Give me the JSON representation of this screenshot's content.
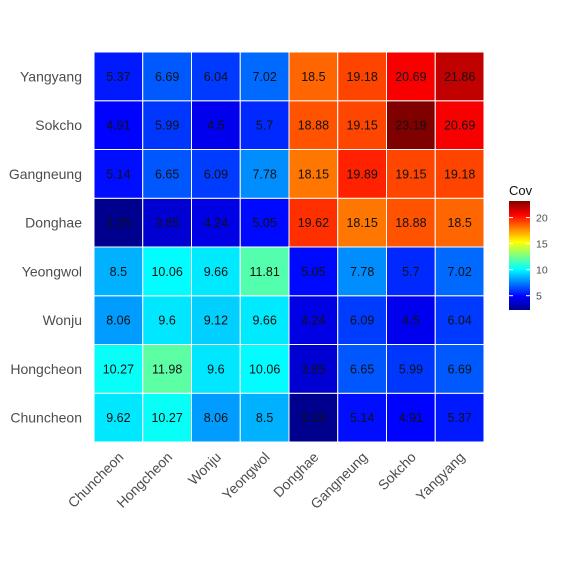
{
  "chart_data": {
    "type": "heatmap",
    "x_categories": [
      "Chuncheon",
      "Hongcheon",
      "Wonju",
      "Yeongwol",
      "Donghae",
      "Gangneung",
      "Sokcho",
      "Yangyang"
    ],
    "y_categories": [
      "Chuncheon",
      "Hongcheon",
      "Wonju",
      "Yeongwol",
      "Donghae",
      "Gangneung",
      "Sokcho",
      "Yangyang"
    ],
    "values": [
      [
        9.62,
        10.27,
        8.06,
        8.5,
        2.25,
        5.14,
        4.91,
        5.37
      ],
      [
        10.27,
        11.98,
        9.6,
        10.06,
        3.85,
        6.65,
        5.99,
        6.69
      ],
      [
        8.06,
        9.6,
        9.12,
        9.66,
        4.24,
        6.09,
        4.5,
        6.04
      ],
      [
        8.5,
        10.06,
        9.66,
        11.81,
        5.05,
        7.78,
        5.7,
        7.02
      ],
      [
        2.25,
        3.85,
        4.24,
        5.05,
        19.62,
        18.15,
        18.88,
        18.5
      ],
      [
        5.14,
        6.65,
        6.09,
        7.78,
        18.15,
        19.89,
        19.15,
        19.18
      ],
      [
        4.91,
        5.99,
        4.5,
        5.7,
        18.88,
        19.15,
        23.19,
        20.69
      ],
      [
        5.37,
        6.69,
        6.04,
        7.02,
        18.5,
        19.18,
        20.69,
        21.86
      ]
    ],
    "legend": {
      "title": "Cov",
      "ticks": [
        5,
        10,
        15,
        20
      ],
      "range": [
        2.25,
        23.19
      ],
      "placement": "right"
    },
    "colorscale": [
      "#00008f",
      "#0000ff",
      "#0080ff",
      "#00ffff",
      "#80ff80",
      "#ffff00",
      "#ff8000",
      "#ff0000",
      "#800000"
    ],
    "title": "",
    "xlabel": "",
    "ylabel": ""
  }
}
